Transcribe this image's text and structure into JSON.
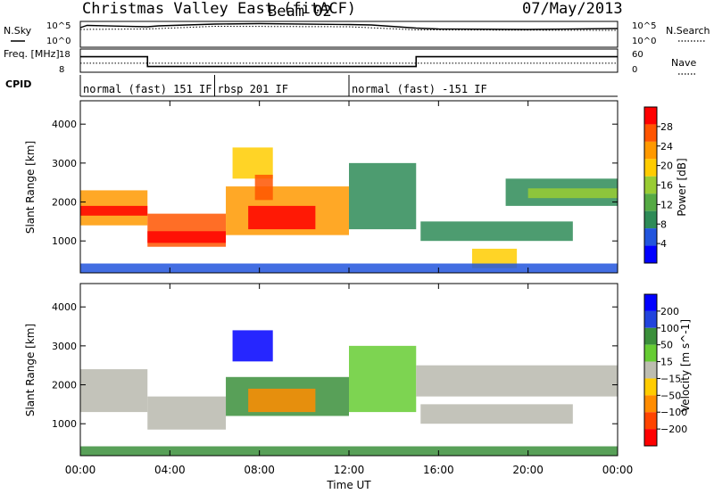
{
  "header": {
    "station": "Christmas Valley East (fitACF)",
    "beam": "Beam 02",
    "date": "07/May/2013"
  },
  "colors": {
    "power_scale": [
      "#0000ff",
      "#2255dd",
      "#2e8b57",
      "#55aa44",
      "#99cc33",
      "#ffcc00",
      "#ff9900",
      "#ff5500",
      "#ff0000"
    ],
    "velocity_scale": [
      "#0000ff",
      "#2244dd",
      "#3b8f3b",
      "#66cc33",
      "#bdbdb0",
      "#ffcc00",
      "#ff8c00",
      "#ff4400",
      "#ff0000"
    ],
    "ground_scatter": "#b8b8ae"
  },
  "chart_data": [
    {
      "type": "line",
      "name": "noise-panel",
      "left_label": "N.Sky",
      "right_label": "N.Search",
      "left_ticks": [
        "10^5",
        "10^0"
      ],
      "right_ticks": [
        "10^5",
        "10^0"
      ],
      "series": [
        {
          "name": "N.Sky",
          "style": "solid",
          "x_hours": [
            0,
            0.3,
            3,
            3.5,
            6,
            8,
            12,
            13,
            15,
            16,
            20,
            24
          ],
          "values_log10": [
            4.0,
            4.5,
            4.2,
            4.4,
            4.8,
            4.9,
            4.7,
            4.6,
            3.9,
            3.7,
            3.6,
            3.8
          ]
        },
        {
          "name": "N.Search",
          "style": "dotted",
          "x_hours": [
            0,
            3,
            6,
            12,
            15,
            24
          ],
          "values_log10": [
            3.6,
            3.7,
            4.3,
            4.2,
            3.5,
            3.4
          ]
        }
      ]
    },
    {
      "type": "line",
      "name": "frequency-panel",
      "left_label": "Freq. [MHz]",
      "right_label": "Nave",
      "left_ticks": [
        "18",
        "8"
      ],
      "right_ticks": [
        "60",
        "0"
      ],
      "series": [
        {
          "name": "Freq",
          "style": "solid",
          "x_hours": [
            0,
            3,
            3,
            15,
            15,
            24
          ],
          "values": [
            15,
            15,
            10,
            10,
            15,
            15
          ]
        },
        {
          "name": "Nave",
          "style": "dotted",
          "x_hours": [
            0,
            24
          ],
          "values": [
            22,
            22
          ]
        }
      ]
    },
    {
      "type": "table",
      "name": "cpid-panel",
      "label": "CPID",
      "segments": [
        {
          "start_hour": 0,
          "end_hour": 6,
          "text": "normal (fast) 151 IF"
        },
        {
          "start_hour": 6,
          "end_hour": 12,
          "text": "rbsp 201 IF"
        },
        {
          "start_hour": 12,
          "end_hour": 24,
          "text": "normal (fast) -151 IF"
        }
      ]
    },
    {
      "type": "heatmap",
      "name": "power-panel",
      "ylabel": "Slant Range [km]",
      "yticks": [
        1000,
        2000,
        3000,
        4000
      ],
      "ylim": [
        180,
        4600
      ],
      "colorbar": {
        "label": "Power [dB]",
        "ticks": [
          4,
          8,
          12,
          16,
          20,
          24,
          28
        ],
        "range": [
          0,
          32
        ]
      },
      "regions": [
        {
          "t0": 0,
          "t1": 3,
          "r0": 1400,
          "r1": 2300,
          "level": 22
        },
        {
          "t0": 0,
          "t1": 3,
          "r0": 1650,
          "r1": 1900,
          "level": 30
        },
        {
          "t0": 3,
          "t1": 6.5,
          "r0": 850,
          "r1": 1700,
          "level": 26
        },
        {
          "t0": 3,
          "t1": 6.5,
          "r0": 950,
          "r1": 1250,
          "level": 30
        },
        {
          "t0": 6.5,
          "t1": 12,
          "r0": 1150,
          "r1": 2400,
          "level": 24
        },
        {
          "t0": 7.5,
          "t1": 10.5,
          "r0": 1300,
          "r1": 1900,
          "level": 30
        },
        {
          "t0": 6.8,
          "t1": 8.6,
          "r0": 2600,
          "r1": 3400,
          "level": 20
        },
        {
          "t0": 7.8,
          "t1": 8.6,
          "r0": 2050,
          "r1": 2700,
          "level": 26
        },
        {
          "t0": 12,
          "t1": 15,
          "r0": 1300,
          "r1": 3000,
          "level": 9
        },
        {
          "t0": 15.2,
          "t1": 22,
          "r0": 1000,
          "r1": 1500,
          "level": 10
        },
        {
          "t0": 17.5,
          "t1": 19.5,
          "r0": 300,
          "r1": 800,
          "level": 20
        },
        {
          "t0": 19,
          "t1": 24,
          "r0": 1900,
          "r1": 2600,
          "level": 10
        },
        {
          "t0": 20,
          "t1": 24,
          "r0": 2100,
          "r1": 2350,
          "level": 16
        },
        {
          "t0": 0,
          "t1": 24,
          "r0": 180,
          "r1": 420,
          "level": 6
        }
      ]
    },
    {
      "type": "heatmap",
      "name": "velocity-panel",
      "ylabel": "Slant Range [km]",
      "yticks": [
        1000,
        2000,
        3000,
        4000
      ],
      "ylim": [
        180,
        4600
      ],
      "xlabel": "Time UT",
      "xticks": [
        "00:00",
        "04:00",
        "08:00",
        "12:00",
        "16:00",
        "20:00",
        "00:00"
      ],
      "xlim_hours": [
        0,
        24
      ],
      "colorbar": {
        "label": "Velocity [m s^-1]",
        "ticks": [
          200,
          100,
          50,
          15,
          -15,
          -50,
          -100,
          -200
        ],
        "range": [
          -250,
          250
        ]
      },
      "regions": [
        {
          "t0": 0,
          "t1": 3,
          "r0": 1300,
          "r1": 2400,
          "velocity": 0
        },
        {
          "t0": 3,
          "t1": 6.5,
          "r0": 850,
          "r1": 1700,
          "velocity": 0
        },
        {
          "t0": 6.5,
          "t1": 12,
          "r0": 1200,
          "r1": 2200,
          "velocity": 40
        },
        {
          "t0": 7.5,
          "t1": 10.5,
          "r0": 1300,
          "r1": 1900,
          "velocity": -40
        },
        {
          "t0": 6.8,
          "t1": 8.6,
          "r0": 2600,
          "r1": 3400,
          "velocity": 220
        },
        {
          "t0": 12,
          "t1": 15,
          "r0": 1300,
          "r1": 3000,
          "velocity": 30
        },
        {
          "t0": 15,
          "t1": 24,
          "r0": 1700,
          "r1": 2500,
          "velocity": 0
        },
        {
          "t0": 15.2,
          "t1": 22,
          "r0": 1000,
          "r1": 1500,
          "velocity": 0
        },
        {
          "t0": 0,
          "t1": 24,
          "r0": 180,
          "r1": 420,
          "velocity": 45
        }
      ]
    }
  ]
}
